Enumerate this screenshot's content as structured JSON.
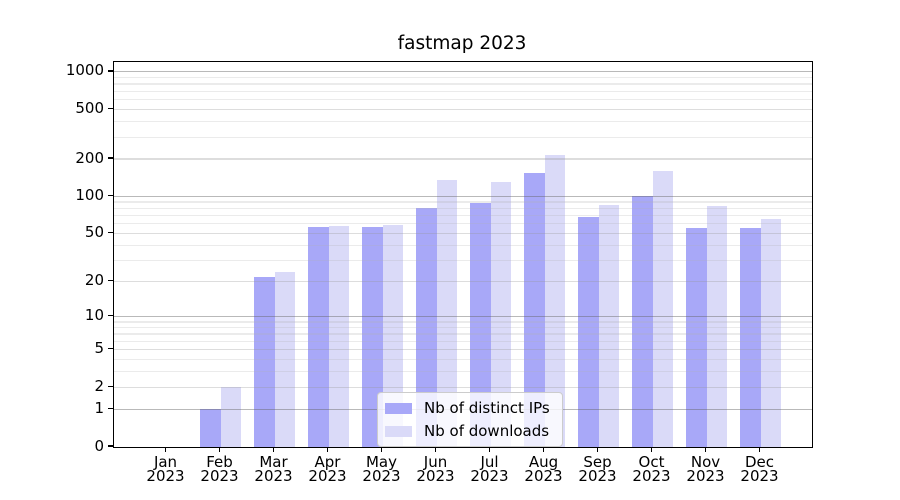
{
  "title": "fastmap 2023",
  "legend": {
    "items": [
      {
        "label": "Nb of distinct IPs",
        "color": "#a8a8f8"
      },
      {
        "label": "Nb of downloads",
        "color": "#dadaf8"
      }
    ]
  },
  "chart_data": {
    "type": "bar",
    "title": "fastmap 2023",
    "categories": [
      "Jan",
      "Feb",
      "Mar",
      "Apr",
      "May",
      "Jun",
      "Jul",
      "Aug",
      "Sep",
      "Oct",
      "Nov",
      "Dec"
    ],
    "category_year": "2023",
    "series": [
      {
        "name": "Nb of distinct IPs",
        "color": "#a8a8f8",
        "values": [
          0,
          1,
          22,
          57,
          56,
          80,
          88,
          154,
          68,
          100,
          55,
          55
        ]
      },
      {
        "name": "Nb of downloads",
        "color": "#dadaf8",
        "values": [
          0,
          2,
          24,
          58,
          59,
          136,
          130,
          214,
          85,
          160,
          83,
          66
        ]
      }
    ],
    "xlabel": "",
    "ylabel": "",
    "yscale": "log1p",
    "ylim": [
      0,
      1200
    ],
    "y_ticks": [
      0,
      1,
      2,
      5,
      10,
      20,
      50,
      100,
      200,
      500,
      1000
    ],
    "grid": {
      "on": true,
      "major_lines": [
        1,
        10,
        100,
        1000
      ],
      "sub_lines": [
        2,
        5,
        20,
        50,
        200,
        500
      ],
      "minor_lines": [
        3,
        4,
        6,
        7,
        8,
        9,
        30,
        40,
        60,
        70,
        80,
        90,
        300,
        400,
        600,
        700,
        800,
        900
      ]
    },
    "legend_position": "lower center"
  }
}
